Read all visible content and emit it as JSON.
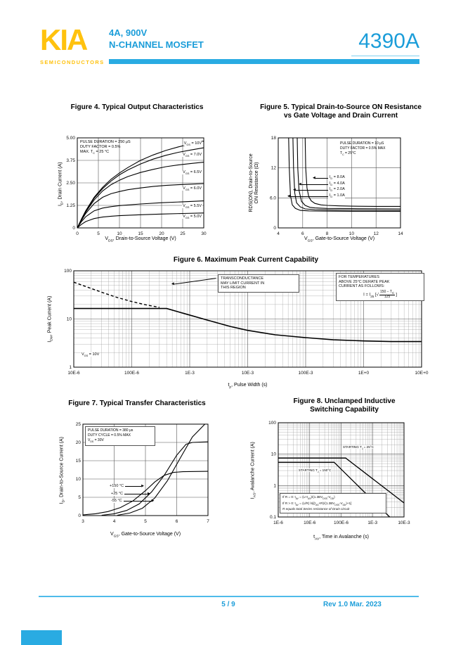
{
  "header": {
    "logo": "KIA",
    "logo_sub": "SEMICONDUCTORS",
    "spec_line1": "4A, 900V",
    "spec_line2": "N-CHANNEL MOSFET",
    "part_number": "4390A",
    "accent_color": "#29ABE2",
    "brand_yellow": "#FFC20E",
    "brand_blue": "#1B9DD9"
  },
  "footer": {
    "page": "5 / 9",
    "rev": "Rev 1.0 Mar. 2023"
  },
  "chart_data": [
    {
      "id": "fig4",
      "type": "line",
      "title": "Figure 4. Typical Output Characteristics",
      "xlabel": "V~DS~, Drain-to-Source Voltage (V)",
      "ylabel": "I~D~, Drain Current (A)",
      "xscale": "linear",
      "xlim": [
        0,
        30
      ],
      "xticks": [
        0,
        5,
        10,
        15,
        20,
        25,
        30
      ],
      "xtick_labels": [
        "0",
        "5",
        "10",
        "15",
        "20",
        "25",
        "30"
      ],
      "yscale": "linear",
      "ylim": [
        0,
        5
      ],
      "yticks": [
        0,
        1.25,
        2.5,
        3.75,
        5
      ],
      "ytick_labels": [
        "0",
        "1.25",
        "2.50",
        "3.75",
        "5.00"
      ],
      "conditions": [
        "PULSE DURATION = 250 μS",
        "DUTY FACTOR = 0.5%",
        "MAX. T~C~ = 25 °C"
      ],
      "series": [
        {
          "name": "V~GS~ = 10V",
          "points": [
            [
              0,
              0
            ],
            [
              1,
              0.5
            ],
            [
              2,
              0.95
            ],
            [
              4,
              1.7
            ],
            [
              6,
              2.25
            ],
            [
              8,
              2.7
            ],
            [
              10,
              3.05
            ],
            [
              12,
              3.35
            ],
            [
              15,
              3.75
            ],
            [
              18,
              4.05
            ],
            [
              21,
              4.3
            ],
            [
              24,
              4.5
            ],
            [
              27,
              4.67
            ],
            [
              30,
              4.82
            ]
          ]
        },
        {
          "name": "V~GS~ = 7.0V",
          "points": [
            [
              0,
              0
            ],
            [
              1,
              0.48
            ],
            [
              2,
              0.92
            ],
            [
              4,
              1.65
            ],
            [
              6,
              2.18
            ],
            [
              8,
              2.6
            ],
            [
              10,
              2.95
            ],
            [
              12,
              3.22
            ],
            [
              15,
              3.55
            ],
            [
              18,
              3.82
            ],
            [
              21,
              4.03
            ],
            [
              24,
              4.2
            ],
            [
              27,
              4.33
            ],
            [
              30,
              4.45
            ]
          ]
        },
        {
          "name": "V~GS~ = 6.5V",
          "points": [
            [
              0,
              0
            ],
            [
              1,
              0.45
            ],
            [
              2,
              0.88
            ],
            [
              4,
              1.55
            ],
            [
              6,
              2.05
            ],
            [
              8,
              2.4
            ],
            [
              10,
              2.65
            ],
            [
              12,
              2.85
            ],
            [
              15,
              3.08
            ],
            [
              18,
              3.25
            ],
            [
              21,
              3.4
            ],
            [
              24,
              3.5
            ],
            [
              27,
              3.58
            ],
            [
              30,
              3.65
            ]
          ]
        },
        {
          "name": "V~GS~ = 6.0V",
          "points": [
            [
              0,
              0
            ],
            [
              1,
              0.42
            ],
            [
              2,
              0.8
            ],
            [
              4,
              1.35
            ],
            [
              6,
              1.7
            ],
            [
              8,
              1.9
            ],
            [
              10,
              2.02
            ],
            [
              12,
              2.12
            ],
            [
              15,
              2.22
            ],
            [
              18,
              2.3
            ],
            [
              21,
              2.36
            ],
            [
              24,
              2.4
            ],
            [
              27,
              2.43
            ],
            [
              30,
              2.46
            ]
          ]
        },
        {
          "name": "V~GS~ = 5.5V",
          "points": [
            [
              0,
              0
            ],
            [
              1,
              0.35
            ],
            [
              2,
              0.62
            ],
            [
              4,
              0.95
            ],
            [
              6,
              1.1
            ],
            [
              8,
              1.18
            ],
            [
              10,
              1.24
            ],
            [
              15,
              1.33
            ],
            [
              20,
              1.4
            ],
            [
              25,
              1.45
            ],
            [
              30,
              1.5
            ]
          ]
        },
        {
          "name": "V~GS~ = 5.0V",
          "points": [
            [
              0,
              0
            ],
            [
              1,
              0.2
            ],
            [
              2,
              0.35
            ],
            [
              4,
              0.52
            ],
            [
              6,
              0.6
            ],
            [
              8,
              0.65
            ],
            [
              10,
              0.68
            ],
            [
              15,
              0.73
            ],
            [
              20,
              0.77
            ],
            [
              25,
              0.8
            ],
            [
              30,
              0.83
            ]
          ]
        }
      ]
    },
    {
      "id": "fig5",
      "type": "line",
      "title": "Figure 5.   Typical Drain-to-Source ON Resistance vs Gate Voltage and Drain Current",
      "xlabel": "V~GS~, Gate-to-Source Voltage (V)",
      "ylabel": "RDS(ON), Drain-to-Source",
      "ylabel2": "ON Resistance (Ω)",
      "xscale": "linear",
      "xlim": [
        4,
        14
      ],
      "xticks": [
        4,
        6,
        8,
        10,
        12,
        14
      ],
      "xtick_labels": [
        "4",
        "6",
        "8",
        "10",
        "12",
        "14"
      ],
      "yscale": "linear",
      "ylim": [
        0,
        18
      ],
      "yticks": [
        0,
        6,
        12,
        18
      ],
      "ytick_labels": [
        "0",
        "6.0",
        "12",
        "18"
      ],
      "conditions": [
        "PULSE DURATION = 10 μS",
        "DUTY FACTOR = 0.5% MAX",
        "T~C~ = 25°C"
      ],
      "series": [
        {
          "name": "I~D~ = 8.0A",
          "points": [
            [
              6.2,
              18
            ],
            [
              6.25,
              12
            ],
            [
              6.35,
              8
            ],
            [
              6.5,
              6.2
            ],
            [
              6.7,
              5.4
            ],
            [
              7,
              4.9
            ],
            [
              7.5,
              4.6
            ],
            [
              8,
              4.5
            ],
            [
              9,
              4.4
            ],
            [
              10,
              4.35
            ],
            [
              12,
              4.3
            ],
            [
              14,
              4.3
            ]
          ]
        },
        {
          "name": "I~D~ = 4.0A",
          "points": [
            [
              5.55,
              18
            ],
            [
              5.6,
              12
            ],
            [
              5.7,
              7.5
            ],
            [
              5.9,
              5.3
            ],
            [
              6.2,
              4.5
            ],
            [
              6.6,
              4.1
            ],
            [
              7,
              4.0
            ],
            [
              8,
              3.9
            ],
            [
              10,
              3.85
            ],
            [
              14,
              3.8
            ]
          ]
        },
        {
          "name": "I~D~ = 2.0A",
          "points": [
            [
              5.2,
              18
            ],
            [
              5.25,
              12
            ],
            [
              5.35,
              7
            ],
            [
              5.5,
              5
            ],
            [
              5.8,
              4.2
            ],
            [
              6.2,
              3.8
            ],
            [
              7,
              3.65
            ],
            [
              8,
              3.6
            ],
            [
              10,
              3.55
            ],
            [
              14,
              3.5
            ]
          ]
        },
        {
          "name": "I~D~ = 1.0A",
          "points": [
            [
              4.85,
              18
            ],
            [
              4.9,
              12
            ],
            [
              5.0,
              6.5
            ],
            [
              5.15,
              4.6
            ],
            [
              5.4,
              3.9
            ],
            [
              5.8,
              3.5
            ],
            [
              6.5,
              3.4
            ],
            [
              8,
              3.35
            ],
            [
              10,
              3.3
            ],
            [
              14,
              3.3
            ]
          ]
        }
      ]
    },
    {
      "id": "fig6",
      "type": "line",
      "title": "Figure 6. Maximum Peak Current Capability",
      "xlabel": "t~p~, Pulse Width (s)",
      "ylabel": "I~DM~, Peak Current (A)",
      "xscale": "log",
      "xlim": [
        1e-05,
        10
      ],
      "xticks": [
        1e-05,
        0.0001,
        0.001,
        0.01,
        0.1,
        1,
        10
      ],
      "xtick_labels": [
        "10E-6",
        "100E-6",
        "1E-3",
        "10E-3",
        "100E-3",
        "1E+0",
        "10E+0"
      ],
      "yscale": "log",
      "ylim": [
        1,
        100
      ],
      "yticks": [
        1,
        10,
        100
      ],
      "ytick_labels": [
        "1",
        "10",
        "100"
      ],
      "note": "V~GS~ = 10V",
      "annotations": {
        "left_box": [
          "TRANSCONDUCTANCE",
          "MAY LIMIT CURRENT IN",
          "THIS REGION"
        ],
        "right_box": [
          "FOR TEMPERATURES",
          "ABOVE 25°C DERATE PEAK",
          "CURRENT AS FOLLOWS:"
        ],
        "formula": {
          "lhs": "I = I",
          "sub": "25",
          "open": "[√",
          "num": "150 − T~C~",
          "den": "125",
          "close": "]"
        }
      },
      "series": [
        {
          "name": "transconductance-limit",
          "dash": true,
          "lw": 1.4,
          "points": [
            [
              1e-05,
              58
            ],
            [
              1.8e-05,
              45
            ],
            [
              3.2e-05,
              35
            ],
            [
              5.6e-05,
              28
            ],
            [
              0.0001,
              23
            ],
            [
              0.00018,
              19.5
            ],
            [
              0.0003,
              17.5
            ]
          ]
        },
        {
          "name": "maximum-peak-current",
          "lw": 1.6,
          "points": [
            [
              1e-05,
              16.5
            ],
            [
              0.0004,
              16.5
            ],
            [
              0.0008,
              13
            ],
            [
              0.002,
              9.5
            ],
            [
              0.005,
              7
            ],
            [
              0.01,
              5.8
            ],
            [
              0.03,
              4.7
            ],
            [
              0.1,
              4.1
            ],
            [
              0.3,
              3.7
            ],
            [
              1,
              3.5
            ],
            [
              3,
              3.4
            ],
            [
              10,
              3.4
            ]
          ]
        }
      ]
    },
    {
      "id": "fig7",
      "type": "line",
      "title": "Figure 7. Typical Transfer Characteristics",
      "xlabel": "V~GS~, Gate-to-Source Voltage (V)",
      "ylabel": "I~D~, Drain-to-Source Current (A)",
      "xscale": "linear",
      "xlim": [
        3,
        7
      ],
      "xticks": [
        3,
        4,
        5,
        6,
        7
      ],
      "xtick_labels": [
        "3",
        "4",
        "5",
        "6",
        "7"
      ],
      "yscale": "linear",
      "ylim": [
        0,
        25
      ],
      "yticks": [
        0,
        5,
        10,
        15,
        20,
        25
      ],
      "ytick_labels": [
        "0",
        "5",
        "10",
        "15",
        "20",
        "25"
      ],
      "conditions": [
        "PULSE DURATION = 380 μs",
        "DUTY CYCLE = 0.5% MAX",
        "V~DS~ = 30V"
      ],
      "series": [
        {
          "name": "+150 °C",
          "points": [
            [
              3,
              0.2
            ],
            [
              3.4,
              0.5
            ],
            [
              3.8,
              1.1
            ],
            [
              4.2,
              2.2
            ],
            [
              4.6,
              4
            ],
            [
              5,
              6.8
            ],
            [
              5.3,
              9.2
            ],
            [
              5.6,
              11
            ],
            [
              5.9,
              11.8
            ],
            [
              6.2,
              12
            ],
            [
              7,
              12.1
            ]
          ]
        },
        {
          "name": "+25 °C",
          "points": [
            [
              3.6,
              0.1
            ],
            [
              4,
              0.5
            ],
            [
              4.4,
              1.4
            ],
            [
              4.8,
              3.2
            ],
            [
              5.2,
              6.5
            ],
            [
              5.6,
              11
            ],
            [
              6,
              16.5
            ],
            [
              6.3,
              19.5
            ],
            [
              6.5,
              20
            ],
            [
              7,
              20.2
            ]
          ]
        },
        {
          "name": "-55 °C",
          "points": [
            [
              4.1,
              0.1
            ],
            [
              4.5,
              0.7
            ],
            [
              4.9,
              2
            ],
            [
              5.3,
              4.8
            ],
            [
              5.7,
              9.5
            ],
            [
              6.1,
              15.5
            ],
            [
              6.5,
              21.5
            ],
            [
              6.9,
              25
            ]
          ]
        }
      ]
    },
    {
      "id": "fig8",
      "type": "line",
      "title": "Figure 8.   Unclamped Inductive Switching Capability",
      "xlabel": "t~AV~, Time in Avalanche (s)",
      "ylabel": "I~AS~, Avalanche Current (A)",
      "xscale": "log",
      "xlim": [
        1e-06,
        0.01
      ],
      "xticks": [
        1e-06,
        1e-05,
        0.0001,
        0.001,
        0.01
      ],
      "xtick_labels": [
        "1E-6",
        "10E-6",
        "100E-6",
        "1E-3",
        "10E-3"
      ],
      "yscale": "log",
      "ylim": [
        0.1,
        100
      ],
      "yticks": [
        0.1,
        1,
        10,
        100
      ],
      "ytick_labels": [
        "0.1",
        "1",
        "10",
        "100"
      ],
      "annotations": {
        "label_25": "STARTING T~J~ = 25°C",
        "label_150": "STARTING T~J~ = 150°C",
        "formulas": [
          "If R = 0: t~AV~ = (L×I~AS~)/(1.3BV~DSS~-V~DD~)",
          "If R > 0: t~AV~ = (L/R) ln[(I~AS~×R)/(1.3BV~DSS~-V~DD~)+1]",
          "R equals total Series resistance of Drain circuit"
        ]
      },
      "series": [
        {
          "name": "starting-tj-25",
          "lw": 1.3,
          "points": [
            [
              1e-06,
              7.5
            ],
            [
              0.00014,
              7.5
            ],
            [
              0.01,
              0.28
            ]
          ]
        },
        {
          "name": "starting-tj-150",
          "lw": 1.3,
          "points": [
            [
              1e-06,
              5.5
            ],
            [
              6e-05,
              5.5
            ],
            [
              0.0035,
              0.1
            ]
          ]
        }
      ]
    }
  ]
}
